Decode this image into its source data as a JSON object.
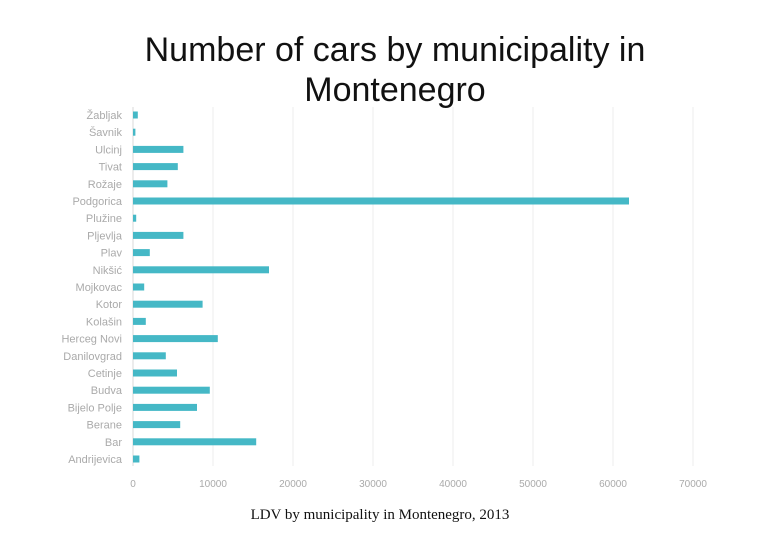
{
  "chart_data": {
    "type": "bar",
    "orientation": "horizontal",
    "title": "Number of cars by municipality in Montenegro",
    "xlabel": "LDV by municipality in Montenegro, 2013",
    "ylabel": "",
    "categories": [
      "Žabljak",
      "Šavnik",
      "Ulcinj",
      "Tivat",
      "Rožaje",
      "Podgorica",
      "Plužine",
      "Pljevlja",
      "Plav",
      "Nikšić",
      "Mojkovac",
      "Kotor",
      "Kolašin",
      "Herceg Novi",
      "Danilovgrad",
      "Cetinje",
      "Budva",
      "Bijelo Polje",
      "Berane",
      "Bar",
      "Andrijevica"
    ],
    "values": [
      600,
      300,
      6300,
      5600,
      4300,
      62000,
      400,
      6300,
      2100,
      17000,
      1400,
      8700,
      1600,
      10600,
      4100,
      5500,
      9600,
      8000,
      5900,
      15400,
      800
    ],
    "xlim": [
      0,
      70000
    ],
    "xticks": [
      "0",
      "10000",
      "20000",
      "30000",
      "40000",
      "50000",
      "60000",
      "70000"
    ],
    "grid": true,
    "legend": "none",
    "bar_color": "#45b8c6"
  }
}
